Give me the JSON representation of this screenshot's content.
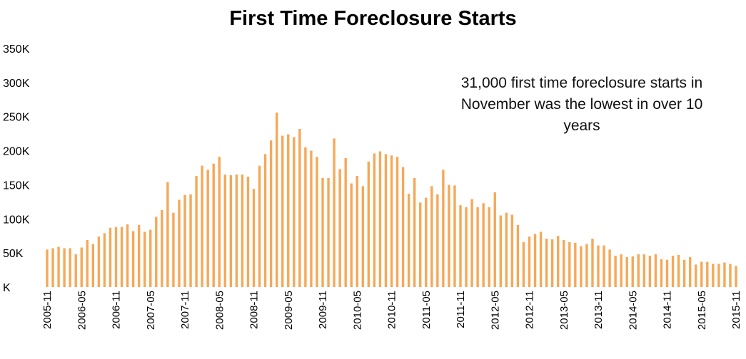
{
  "chart_data": {
    "type": "bar",
    "title": "First Time Foreclosure Starts",
    "annotation": "31,000 first time foreclosure starts in November was the lowest in over 10 years",
    "bar_color": "#F5A858",
    "ylim": [
      0,
      350000
    ],
    "yticks": [
      {
        "value": 0,
        "label": "K"
      },
      {
        "value": 50000,
        "label": "50K"
      },
      {
        "value": 100000,
        "label": "100K"
      },
      {
        "value": 150000,
        "label": "150K"
      },
      {
        "value": 200000,
        "label": "200K"
      },
      {
        "value": 250000,
        "label": "250K"
      },
      {
        "value": 300000,
        "label": "300K"
      },
      {
        "value": 350000,
        "label": "350K"
      }
    ],
    "xticks": [
      "2005-11",
      "2006-05",
      "2006-11",
      "2007-05",
      "2007-11",
      "2008-05",
      "2008-11",
      "2009-05",
      "2009-11",
      "2010-05",
      "2010-11",
      "2011-05",
      "2011-11",
      "2012-05",
      "2012-11",
      "2013-05",
      "2013-11",
      "2014-05",
      "2014-11",
      "2015-05",
      "2015-11"
    ],
    "categories": [
      "2005-11",
      "2005-12",
      "2006-01",
      "2006-02",
      "2006-03",
      "2006-04",
      "2006-05",
      "2006-06",
      "2006-07",
      "2006-08",
      "2006-09",
      "2006-10",
      "2006-11",
      "2006-12",
      "2007-01",
      "2007-02",
      "2007-03",
      "2007-04",
      "2007-05",
      "2007-06",
      "2007-07",
      "2007-08",
      "2007-09",
      "2007-10",
      "2007-11",
      "2007-12",
      "2008-01",
      "2008-02",
      "2008-03",
      "2008-04",
      "2008-05",
      "2008-06",
      "2008-07",
      "2008-08",
      "2008-09",
      "2008-10",
      "2008-11",
      "2008-12",
      "2009-01",
      "2009-02",
      "2009-03",
      "2009-04",
      "2009-05",
      "2009-06",
      "2009-07",
      "2009-08",
      "2009-09",
      "2009-10",
      "2009-11",
      "2009-12",
      "2010-01",
      "2010-02",
      "2010-03",
      "2010-04",
      "2010-05",
      "2010-06",
      "2010-07",
      "2010-08",
      "2010-09",
      "2010-10",
      "2010-11",
      "2010-12",
      "2011-01",
      "2011-02",
      "2011-03",
      "2011-04",
      "2011-05",
      "2011-06",
      "2011-07",
      "2011-08",
      "2011-09",
      "2011-10",
      "2011-11",
      "2011-12",
      "2012-01",
      "2012-02",
      "2012-03",
      "2012-04",
      "2012-05",
      "2012-06",
      "2012-07",
      "2012-08",
      "2012-09",
      "2012-10",
      "2012-11",
      "2012-12",
      "2013-01",
      "2013-02",
      "2013-03",
      "2013-04",
      "2013-05",
      "2013-06",
      "2013-07",
      "2013-08",
      "2013-09",
      "2013-10",
      "2013-11",
      "2013-12",
      "2014-01",
      "2014-02",
      "2014-03",
      "2014-04",
      "2014-05",
      "2014-06",
      "2014-07",
      "2014-08",
      "2014-09",
      "2014-10",
      "2014-11",
      "2014-12",
      "2015-01",
      "2015-02",
      "2015-03",
      "2015-04",
      "2015-05",
      "2015-06",
      "2015-07",
      "2015-08",
      "2015-09",
      "2015-10",
      "2015-11"
    ],
    "values": [
      55000,
      57000,
      59000,
      57000,
      57000,
      48000,
      58000,
      69000,
      63000,
      74000,
      79000,
      87000,
      88000,
      88000,
      92000,
      82000,
      91000,
      81000,
      84000,
      103000,
      113000,
      154000,
      109000,
      128000,
      135000,
      136000,
      163000,
      178000,
      172000,
      181000,
      191000,
      165000,
      164000,
      165000,
      165000,
      162000,
      144000,
      178000,
      195000,
      215000,
      256000,
      222000,
      224000,
      220000,
      232000,
      205000,
      200000,
      191000,
      160000,
      160000,
      218000,
      173000,
      189000,
      152000,
      163000,
      148000,
      184000,
      196000,
      199000,
      195000,
      193000,
      191000,
      176000,
      137000,
      160000,
      124000,
      131000,
      148000,
      136000,
      172000,
      150000,
      149000,
      120000,
      117000,
      129000,
      117000,
      123000,
      117000,
      139000,
      105000,
      109000,
      106000,
      91000,
      66000,
      74000,
      78000,
      81000,
      71000,
      70000,
      75000,
      69000,
      66000,
      65000,
      60000,
      63000,
      71000,
      61000,
      61000,
      55000,
      46000,
      48000,
      44000,
      45000,
      48000,
      48000,
      46000,
      48000,
      41000,
      40000,
      46000,
      47000,
      40000,
      44000,
      33000,
      37000,
      37000,
      34000,
      34000,
      36000,
      34000,
      31000
    ]
  }
}
